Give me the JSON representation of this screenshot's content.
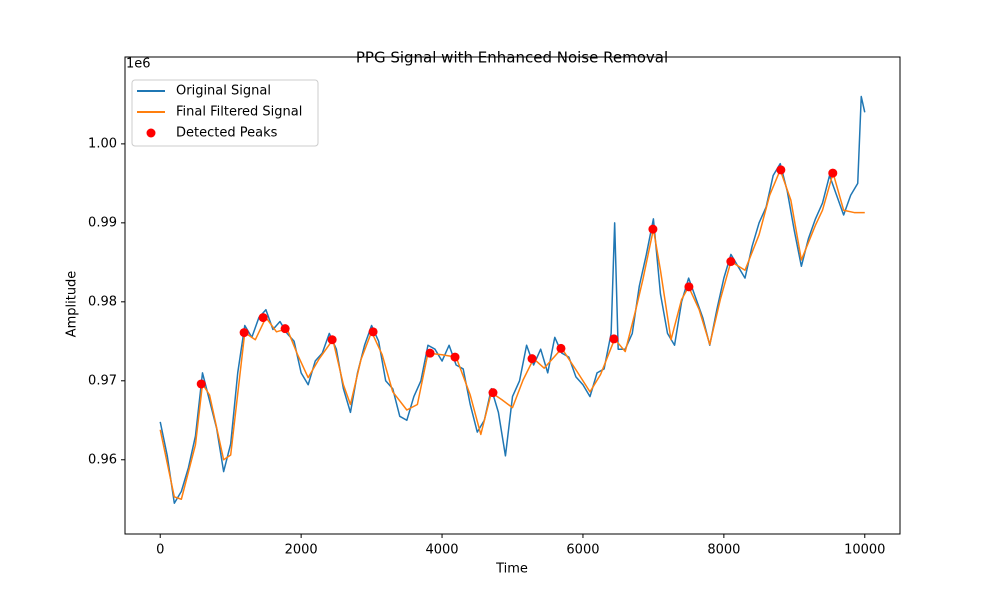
{
  "chart_data": {
    "type": "line",
    "title": "PPG Signal with Enhanced Noise Removal",
    "x_label": "Time",
    "y_label": "Amplitude",
    "y_offset_label": "1e6",
    "xlim": [
      -500,
      10500
    ],
    "ylim": [
      0.9506,
      1.011
    ],
    "xticks": [
      0,
      2000,
      4000,
      6000,
      8000,
      10000
    ],
    "yticks": [
      0.96,
      0.97,
      0.98,
      0.99,
      {
        "value": 1.0,
        "label": "1.00"
      }
    ],
    "grid": false,
    "legend": "upper left",
    "series": [
      {
        "name": "Original Signal",
        "type": "line",
        "color": "#1f77b4",
        "x": [
          0,
          100,
          200,
          300,
          400,
          500,
          600,
          700,
          800,
          900,
          1000,
          1100,
          1200,
          1300,
          1400,
          1500,
          1600,
          1700,
          1800,
          1900,
          2000,
          2100,
          2200,
          2300,
          2400,
          2500,
          2600,
          2700,
          2800,
          2900,
          3000,
          3100,
          3200,
          3300,
          3400,
          3500,
          3600,
          3700,
          3800,
          3900,
          4000,
          4100,
          4200,
          4300,
          4400,
          4500,
          4600,
          4700,
          4800,
          4900,
          5000,
          5100,
          5200,
          5300,
          5400,
          5500,
          5600,
          5700,
          5800,
          5900,
          6000,
          6100,
          6200,
          6300,
          6400,
          6450,
          6500,
          6600,
          6700,
          6800,
          6900,
          7000,
          7100,
          7200,
          7300,
          7400,
          7500,
          7600,
          7700,
          7800,
          7900,
          8000,
          8100,
          8200,
          8300,
          8400,
          8500,
          8600,
          8700,
          8800,
          8900,
          9000,
          9100,
          9200,
          9300,
          9400,
          9500,
          9600,
          9700,
          9800,
          9900,
          9950,
          10000
        ],
        "values": [
          0.9648,
          0.9605,
          0.9545,
          0.956,
          0.959,
          0.963,
          0.971,
          0.9675,
          0.964,
          0.9585,
          0.962,
          0.971,
          0.977,
          0.9755,
          0.978,
          0.979,
          0.9765,
          0.9775,
          0.976,
          0.975,
          0.971,
          0.9695,
          0.9725,
          0.9735,
          0.976,
          0.974,
          0.969,
          0.966,
          0.971,
          0.9745,
          0.977,
          0.975,
          0.97,
          0.969,
          0.9655,
          0.965,
          0.968,
          0.97,
          0.9745,
          0.974,
          0.9725,
          0.9745,
          0.972,
          0.9715,
          0.967,
          0.9635,
          0.965,
          0.969,
          0.966,
          0.9605,
          0.968,
          0.97,
          0.9745,
          0.972,
          0.974,
          0.971,
          0.9755,
          0.9735,
          0.973,
          0.9705,
          0.9695,
          0.968,
          0.971,
          0.9715,
          0.976,
          0.99,
          0.974,
          0.974,
          0.976,
          0.982,
          0.986,
          0.9905,
          0.981,
          0.976,
          0.9745,
          0.98,
          0.983,
          0.9805,
          0.978,
          0.9745,
          0.979,
          0.983,
          0.986,
          0.9845,
          0.983,
          0.987,
          0.99,
          0.992,
          0.996,
          0.9975,
          0.994,
          0.989,
          0.9845,
          0.988,
          0.9905,
          0.9925,
          0.996,
          0.9935,
          0.991,
          0.9935,
          0.995,
          1.006,
          1.004
        ]
      },
      {
        "name": "Final Filtered Signal",
        "type": "line",
        "color": "#ff7f0e",
        "x": [
          0,
          200,
          300,
          500,
          600,
          700,
          900,
          1000,
          1200,
          1350,
          1500,
          1650,
          1800,
          1950,
          2100,
          2250,
          2450,
          2600,
          2700,
          2850,
          3000,
          3150,
          3300,
          3500,
          3650,
          3800,
          4000,
          4200,
          4400,
          4550,
          4700,
          4850,
          5000,
          5150,
          5300,
          5450,
          5700,
          5900,
          6100,
          6250,
          6450,
          6600,
          6750,
          6850,
          7000,
          7100,
          7250,
          7400,
          7500,
          7650,
          7800,
          7950,
          8100,
          8300,
          8500,
          8650,
          8800,
          8950,
          9100,
          9300,
          9400,
          9550,
          9700,
          9850,
          10000
        ],
        "values": [
          0.9638,
          0.9553,
          0.955,
          0.9619,
          0.9696,
          0.9682,
          0.96,
          0.9606,
          0.9761,
          0.9752,
          0.978,
          0.9762,
          0.9766,
          0.9733,
          0.9704,
          0.9727,
          0.9752,
          0.9695,
          0.967,
          0.9727,
          0.9762,
          0.9733,
          0.9686,
          0.9663,
          0.967,
          0.9735,
          0.9733,
          0.973,
          0.9682,
          0.9632,
          0.9685,
          0.9676,
          0.9666,
          0.9701,
          0.9728,
          0.9716,
          0.9741,
          0.9714,
          0.9686,
          0.9708,
          0.9753,
          0.9737,
          0.979,
          0.9828,
          0.9892,
          0.984,
          0.9752,
          0.9803,
          0.9819,
          0.979,
          0.9746,
          0.9803,
          0.9851,
          0.984,
          0.9885,
          0.9935,
          0.9967,
          0.9929,
          0.9853,
          0.9897,
          0.9916,
          0.9963,
          0.9916,
          0.9913,
          0.9913
        ]
      },
      {
        "name": "Detected Peaks",
        "type": "scatter",
        "color": "#ff0000",
        "x": [
          582,
          1191,
          1461,
          1773,
          2440,
          3021,
          3830,
          4184,
          4723,
          5277,
          5688,
          6440,
          6993,
          7504,
          8099,
          8809,
          9546
        ],
        "values": [
          0.9696,
          0.9761,
          0.978,
          0.9766,
          0.9752,
          0.9762,
          0.9735,
          0.973,
          0.9685,
          0.9728,
          0.9741,
          0.9753,
          0.9892,
          0.9819,
          0.9851,
          0.9967,
          0.9963
        ]
      }
    ]
  }
}
